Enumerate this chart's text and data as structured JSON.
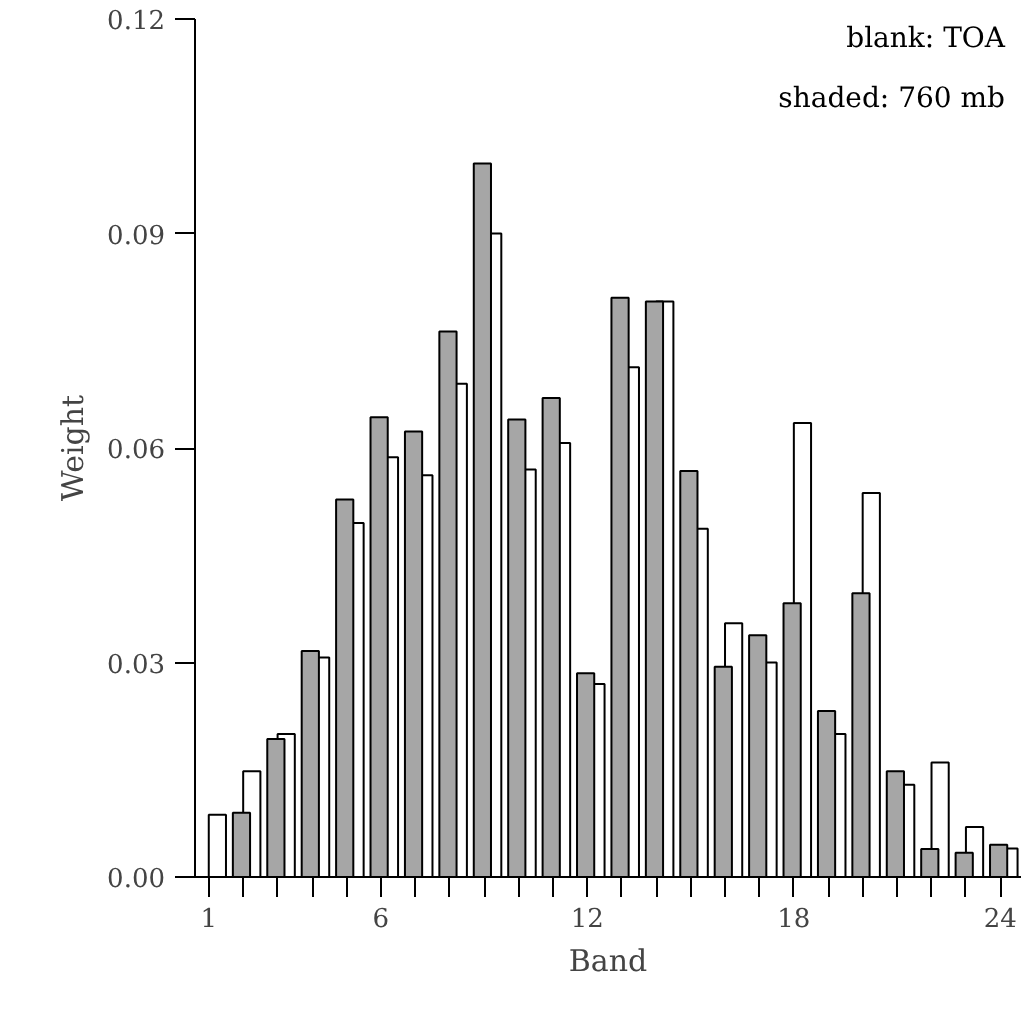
{
  "chart_data": {
    "type": "bar",
    "xlabel": "Band",
    "ylabel": "Weight",
    "x": [
      1,
      2,
      3,
      4,
      5,
      6,
      7,
      8,
      9,
      10,
      11,
      12,
      13,
      14,
      15,
      16,
      17,
      18,
      19,
      20,
      21,
      22,
      23,
      24
    ],
    "series": [
      {
        "color": "#a6a6a6",
        "values": [
          null,
          0.009,
          0.0193,
          0.0316,
          0.0528,
          0.0643,
          0.0623,
          0.0763,
          0.0998,
          0.064,
          0.067,
          0.0285,
          0.081,
          0.0805,
          0.0568,
          0.0294,
          0.0338,
          0.0383,
          0.0232,
          0.0397,
          0.0148,
          0.0039,
          0.0034,
          0.0045
        ]
      },
      {
        "color": "#ffffff",
        "values": [
          0.0087,
          0.0148,
          0.02,
          0.0307,
          0.0495,
          0.0587,
          0.0562,
          0.069,
          0.09,
          0.057,
          0.0607,
          0.027,
          0.0713,
          0.0805,
          0.0487,
          0.0355,
          0.03,
          0.0635,
          0.02,
          0.0537,
          0.0129,
          0.016,
          0.007,
          0.004
        ]
      }
    ],
    "annotations": [
      "blank: TOA",
      "shaded: 760 mb"
    ],
    "xlim": [
      0.6,
      24.6
    ],
    "xticks": [
      1,
      {
        "value": 2,
        "label": null
      },
      {
        "value": 3,
        "label": null
      },
      {
        "value": 4,
        "label": null
      },
      {
        "value": 5,
        "label": null
      },
      6,
      {
        "value": 7,
        "label": null
      },
      {
        "value": 8,
        "label": null
      },
      {
        "value": 9,
        "label": null
      },
      {
        "value": 10,
        "label": null
      },
      {
        "value": 11,
        "label": null
      },
      12,
      {
        "value": 13,
        "label": null
      },
      {
        "value": 14,
        "label": null
      },
      {
        "value": 15,
        "label": null
      },
      {
        "value": 16,
        "label": null
      },
      {
        "value": 17,
        "label": null
      },
      18,
      {
        "value": 19,
        "label": null
      },
      {
        "value": 20,
        "label": null
      },
      {
        "value": 21,
        "label": null
      },
      {
        "value": 22,
        "label": null
      },
      {
        "value": 23,
        "label": null
      },
      24
    ],
    "ylim": [
      0,
      0.12
    ],
    "yticks": [
      {
        "value": 0,
        "label": "0.00"
      },
      0.03,
      0.06,
      0.09,
      0.12
    ],
    "grid": false
  }
}
